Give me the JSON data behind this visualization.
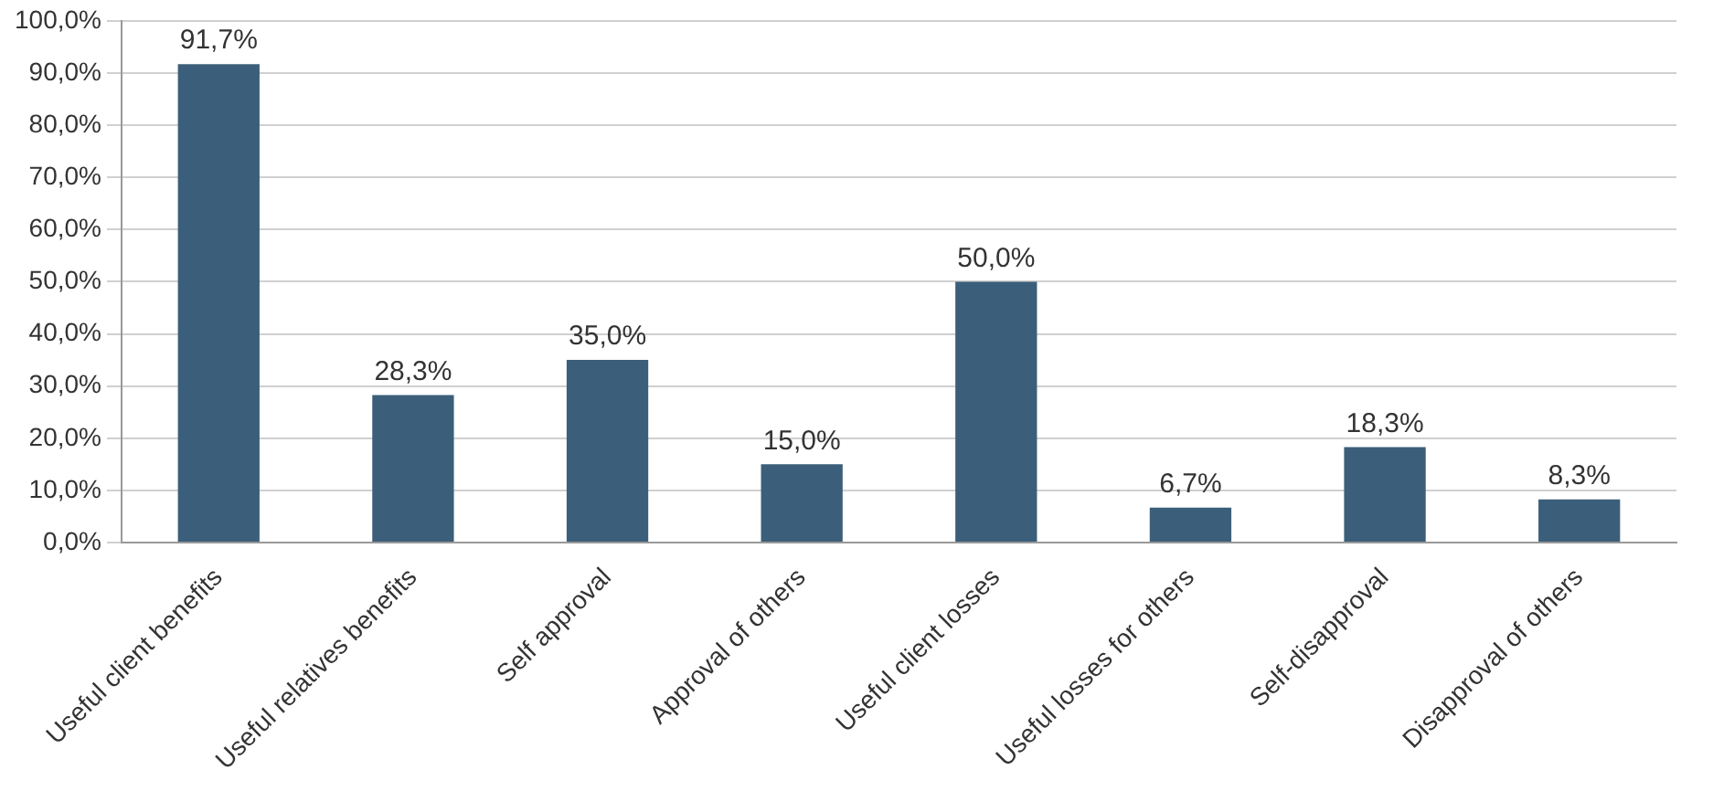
{
  "chart_data": {
    "type": "bar",
    "categories": [
      "Useful client benefits",
      "Useful relatives benefits",
      "Self approval",
      "Approval of others",
      "Useful client losses",
      "Useful losses for others",
      "Self-disapproval",
      "Disapproval of others"
    ],
    "values": [
      91.7,
      28.3,
      35.0,
      15.0,
      50.0,
      6.7,
      18.3,
      8.3
    ],
    "value_labels": [
      "91,7%",
      "28,3%",
      "35,0%",
      "15,0%",
      "50,0%",
      "6,7%",
      "18,3%",
      "8,3%"
    ],
    "color": "#3b5f7a",
    "ylim": [
      0,
      100
    ],
    "yticks": [
      {
        "value": 0,
        "label": "0,0%"
      },
      {
        "value": 10,
        "label": "10,0%"
      },
      {
        "value": 20,
        "label": "20,0%"
      },
      {
        "value": 30,
        "label": "30,0%"
      },
      {
        "value": 40,
        "label": "40,0%"
      },
      {
        "value": 50,
        "label": "50,0%"
      },
      {
        "value": 60,
        "label": "60,0%"
      },
      {
        "value": 70,
        "label": "70,0%"
      },
      {
        "value": 80,
        "label": "80,0%"
      },
      {
        "value": 90,
        "label": "90,0%"
      },
      {
        "value": 100,
        "label": "100,0%"
      }
    ],
    "grid": "y"
  }
}
